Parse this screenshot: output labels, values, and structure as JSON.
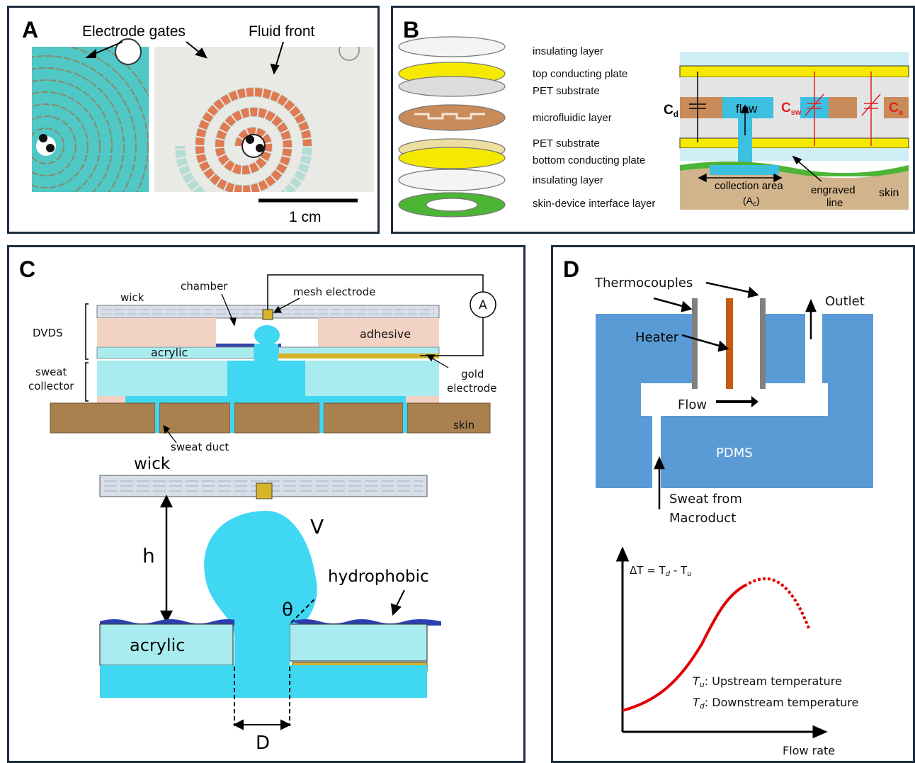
{
  "panelA": {
    "letter": "A",
    "electrode_gates": "Electrode gates",
    "fluid_front": "Fluid front",
    "scale": "1 cm"
  },
  "panelB": {
    "letter": "B",
    "layers": [
      "insulating layer",
      "top conducting plate",
      "PET substrate",
      "microfluidic layer",
      "PET substrate",
      "bottom conducting plate",
      "insulating layer",
      "skin-device interface layer"
    ],
    "cd": "C",
    "cd_sub": "d",
    "flow": "flow",
    "csw": "C",
    "csw_sub": "sw",
    "ca": "C",
    "ca_sub": "a",
    "collection_area": "collection area",
    "ac": "(A",
    "ac_sub": "c",
    "ac_close": ")",
    "engraved": "engraved",
    "line": "line",
    "skin": "skin"
  },
  "panelC": {
    "letter": "C",
    "wick": "wick",
    "chamber": "chamber",
    "mesh_electrode": "mesh electrode",
    "ammeter": "A",
    "dvds": "DVDS",
    "adhesive": "adhesive",
    "acrylic": "acrylic",
    "sweat": "sweat",
    "collector": "collector",
    "gold": "gold",
    "electrode": "electrode",
    "skin": "skin",
    "sweat_duct": "sweat duct",
    "wick2": "wick",
    "h": "h",
    "V": "V",
    "hydrophobic": "hydrophobic",
    "theta": "θ",
    "acrylic2": "acrylic",
    "D": "D"
  },
  "panelD": {
    "letter": "D",
    "thermocouples": "Thermocouples",
    "outlet": "Outlet",
    "heater": "Heater",
    "flow": "Flow",
    "pdms": "PDMS",
    "sweat_from": "Sweat from",
    "macroduct": "Macroduct",
    "ylabel": "ΔT = T",
    "ylabel_d": "d",
    "ylabel_mid": " - T",
    "ylabel_u": "u",
    "tu": "T",
    "tu_sub": "u",
    "tu_text": ": Upstream temperature",
    "td": "T",
    "td_sub": "d",
    "td_text": ": Downstream temperature",
    "xlabel": "Flow rate"
  },
  "colors": {
    "frame": "#1f2d3d",
    "cyan": "#3fd7f2",
    "acrylic": "#a8ecef",
    "adhesive": "#f2d2c3",
    "skin": "#a8814f",
    "gold": "#d6b42a",
    "pdms": "#5b9bd5",
    "heater": "#c55a11",
    "thermo": "#808080",
    "curve": "#e00000",
    "teal": "#51c4c4",
    "copper": "#e07a52"
  }
}
